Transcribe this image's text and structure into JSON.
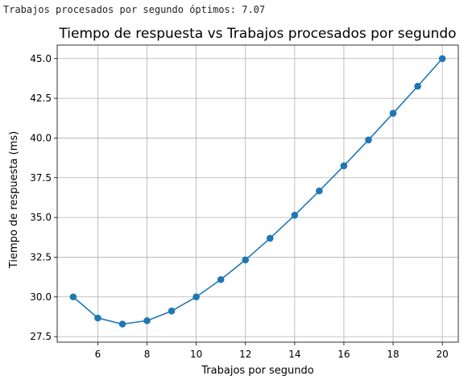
{
  "console": {
    "output_text": "Trabajos procesados por segundo óptimos: 7.07"
  },
  "colors": {
    "series": "#1f77b4",
    "grid": "#b0b0b0",
    "axes": "#000000"
  },
  "chart_data": {
    "type": "line",
    "title": "Tiempo de respuesta vs Trabajos procesados por segundo",
    "xlabel": "Trabajos por segundo",
    "ylabel": "Tiempo de respuesta (ms)",
    "xlim": [
      4.35,
      20.65
    ],
    "ylim": [
      27.15,
      45.85
    ],
    "xticks": [
      6,
      8,
      10,
      12,
      14,
      16,
      18,
      20
    ],
    "xtick_labels": [
      "6",
      "8",
      "10",
      "12",
      "14",
      "16",
      "18",
      "20"
    ],
    "yticks": [
      27.5,
      30.0,
      32.5,
      35.0,
      37.5,
      40.0,
      42.5,
      45.0
    ],
    "ytick_labels": [
      "27.5",
      "30.0",
      "32.5",
      "35.0",
      "37.5",
      "40.0",
      "42.5",
      "45.0"
    ],
    "grid": true,
    "marker": "circle",
    "series": [
      {
        "x": [
          5,
          6,
          7,
          8,
          9,
          10,
          11,
          12,
          13,
          14,
          15,
          16,
          17,
          18,
          19,
          20
        ],
        "y": [
          30.0,
          28.67,
          28.29,
          28.5,
          29.11,
          30.0,
          31.09,
          32.33,
          33.69,
          35.14,
          36.67,
          38.25,
          39.88,
          41.56,
          43.26,
          45.0
        ]
      }
    ]
  }
}
